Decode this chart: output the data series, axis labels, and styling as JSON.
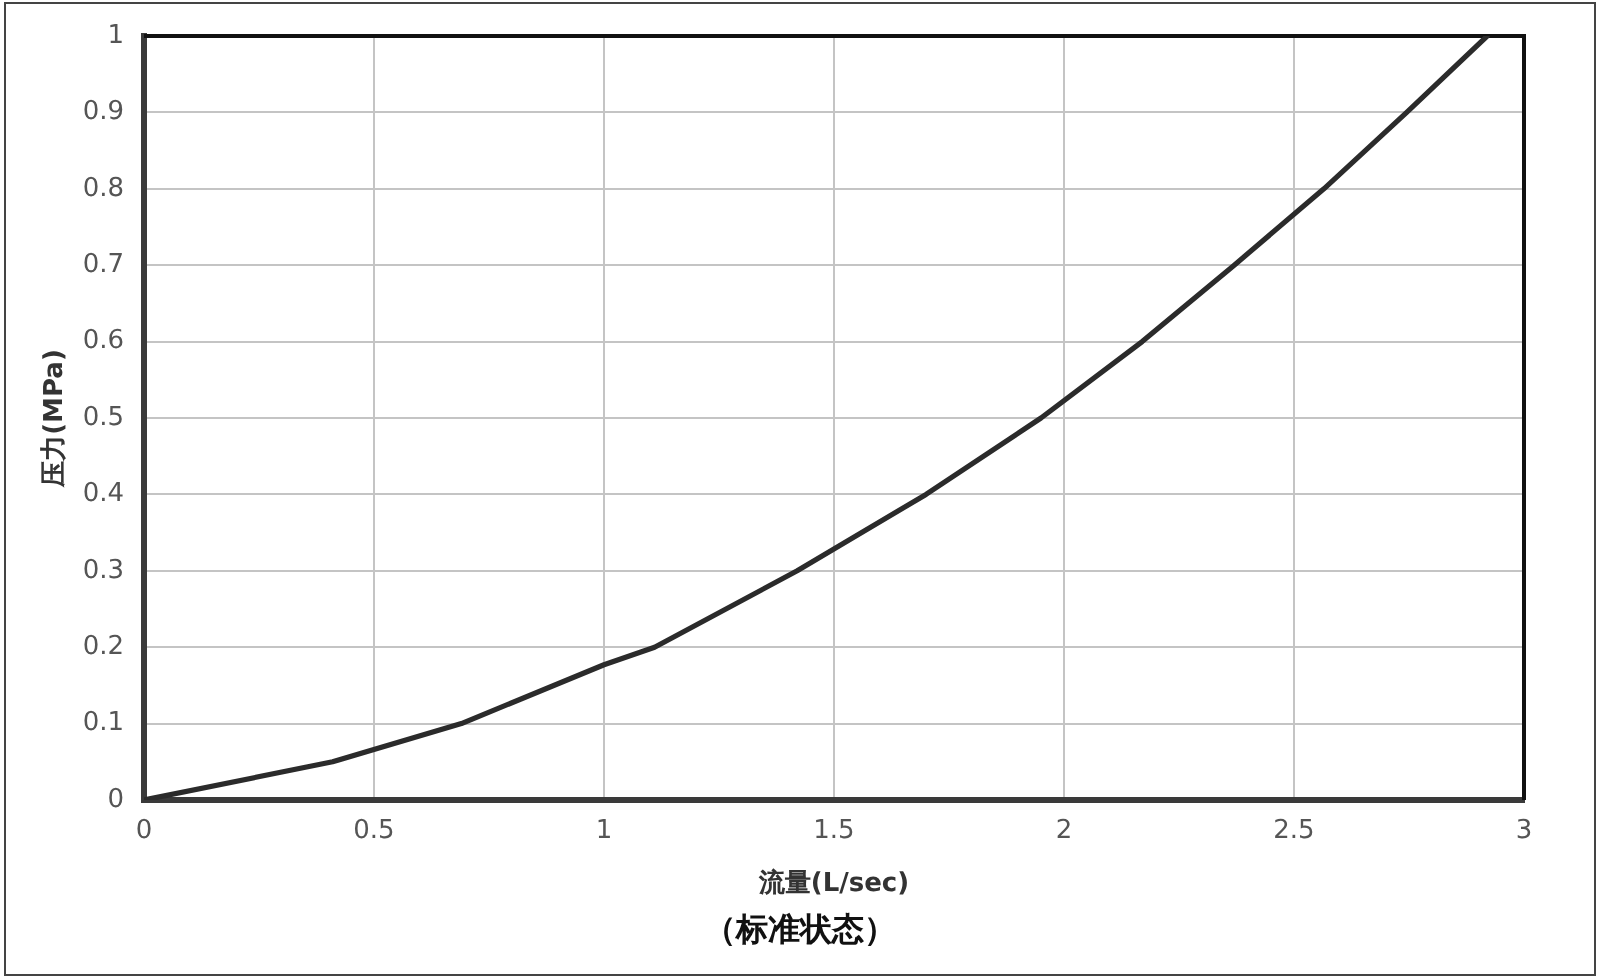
{
  "chart_data": {
    "type": "line",
    "xlabel": "流量(L/sec)",
    "ylabel": "压力(MPa)",
    "annotations": [
      "（标准状态）"
    ],
    "series": [
      {
        "color": "#2b2b2b",
        "x": [
          0,
          0.41,
          0.69,
          1.0,
          1.11,
          1.42,
          1.7,
          1.95,
          2.17,
          2.37,
          2.565,
          2.745,
          2.92
        ],
        "values": [
          0,
          0.05,
          0.1,
          0.177,
          0.2,
          0.3,
          0.4,
          0.5,
          0.6,
          0.7,
          0.8,
          0.9,
          1.0
        ]
      }
    ],
    "xlim": [
      0,
      3
    ],
    "ylim": [
      0,
      1
    ],
    "xticks": [
      0,
      0.5,
      1,
      1.5,
      2,
      2.5,
      3
    ],
    "yticks": [
      0,
      0.1,
      0.2,
      0.3,
      0.4,
      0.5,
      0.6,
      0.7,
      0.8,
      0.9,
      1
    ],
    "grid": true,
    "legend": false,
    "marker": "none",
    "line_style": "solid"
  }
}
